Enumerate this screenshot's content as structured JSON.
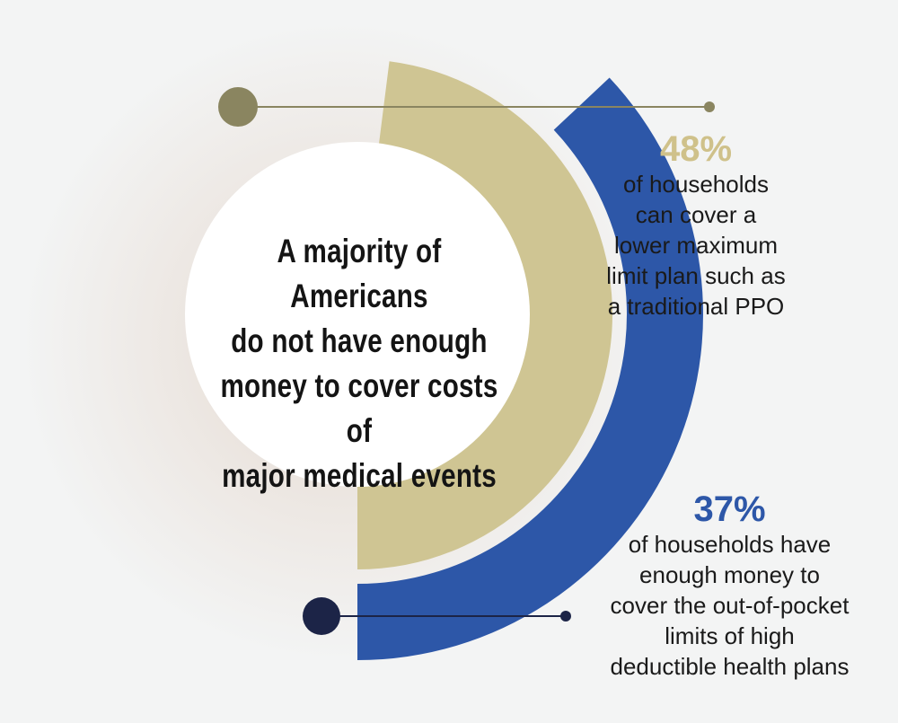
{
  "chart_data": {
    "type": "radial-bar",
    "title": "A majority of Americans\ndo not have enough\nmoney to cover costs of\nmajor medical events",
    "series": [
      {
        "value": 48,
        "unit": "%",
        "label": "48%",
        "description": "of households\ncan cover a\nlower maximum\nlimit plan such as\na traditional PPO",
        "color": "#cfc593",
        "marker_color": "#8a8560",
        "label_color": "#cfc18a"
      },
      {
        "value": 37,
        "unit": "%",
        "label": "37%",
        "description": "of households have\nenough money to\ncover the out-of-pocket\nlimits of high\ndeductible health plans",
        "color": "#2d57a8",
        "marker_color": "#1c2447",
        "label_color": "#2d57a8"
      }
    ]
  }
}
